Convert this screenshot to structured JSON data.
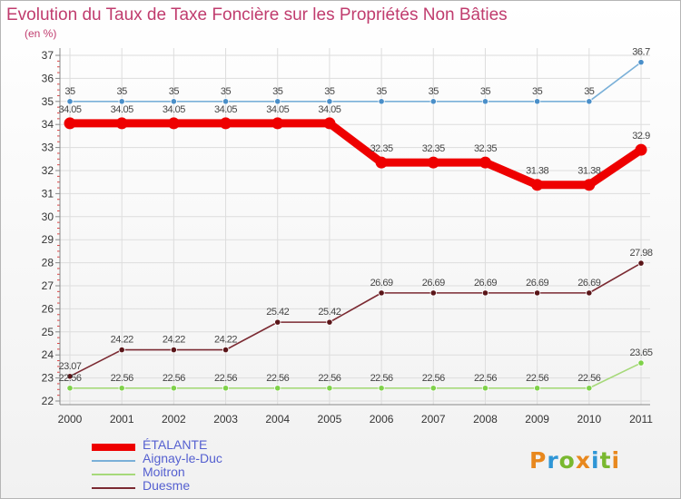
{
  "title": "Evolution du Taux de Taxe Foncière sur les Propriétés Non Bâties",
  "unit": "(en %)",
  "logo": {
    "text": "Proxiti",
    "colors": [
      "#e8881e",
      "#2f96d6",
      "#79b82f",
      "#e8881e",
      "#2f96d6",
      "#79b82f",
      "#e8881e"
    ]
  },
  "chart_data": {
    "type": "line",
    "title": "Evolution du Taux de Taxe Foncière sur les Propriétés Non Bâties",
    "ylabel": "(en %)",
    "xlabel": "",
    "x": [
      "2000",
      "2001",
      "2002",
      "2003",
      "2004",
      "2005",
      "2006",
      "2007",
      "2008",
      "2009",
      "2010",
      "2011"
    ],
    "ylim": [
      22,
      37
    ],
    "yticks": [
      "22",
      "23",
      "24",
      "25",
      "26",
      "27",
      "28",
      "29",
      "30",
      "31",
      "32",
      "33",
      "34",
      "35",
      "36",
      "37"
    ],
    "grid": true,
    "legend": "bottom-left",
    "series": [
      {
        "name": "ÉTALANTE",
        "color": "#ee0000",
        "values": [
          34.05,
          34.05,
          34.05,
          34.05,
          34.05,
          34.05,
          32.35,
          32.35,
          32.35,
          31.38,
          31.38,
          32.9
        ],
        "labels": [
          "34.05",
          "34.05",
          "34.05",
          "34.05",
          "34.05",
          "34.05",
          "32.35",
          "32.35",
          "32.35",
          "31.38",
          "31.38",
          "32.9"
        ]
      },
      {
        "name": "Aignay-le-Duc",
        "color": "#7ab0d8",
        "values": [
          35,
          35,
          35,
          35,
          35,
          35,
          35,
          35,
          35,
          35,
          35,
          36.7
        ],
        "labels": [
          "35",
          "35",
          "35",
          "35",
          "35",
          "35",
          "35",
          "35",
          "35",
          "35",
          "35",
          "36.7"
        ]
      },
      {
        "name": "Moitron",
        "color": "#a6d97a",
        "values": [
          22.56,
          22.56,
          22.56,
          22.56,
          22.56,
          22.56,
          22.56,
          22.56,
          22.56,
          22.56,
          22.56,
          23.65
        ],
        "labels": [
          "22.56",
          "22.56",
          "22.56",
          "22.56",
          "22.56",
          "22.56",
          "22.56",
          "22.56",
          "22.56",
          "22.56",
          "22.56",
          "23.65"
        ]
      },
      {
        "name": "Duesme",
        "color": "#7b2a32",
        "values": [
          23.07,
          24.22,
          24.22,
          24.22,
          25.42,
          25.42,
          26.69,
          26.69,
          26.69,
          26.69,
          26.69,
          27.98
        ],
        "labels": [
          "23.07",
          "24.22",
          "24.22",
          "24.22",
          "25.42",
          "25.42",
          "26.69",
          "26.69",
          "26.69",
          "26.69",
          "26.69",
          "27.98"
        ]
      }
    ]
  }
}
